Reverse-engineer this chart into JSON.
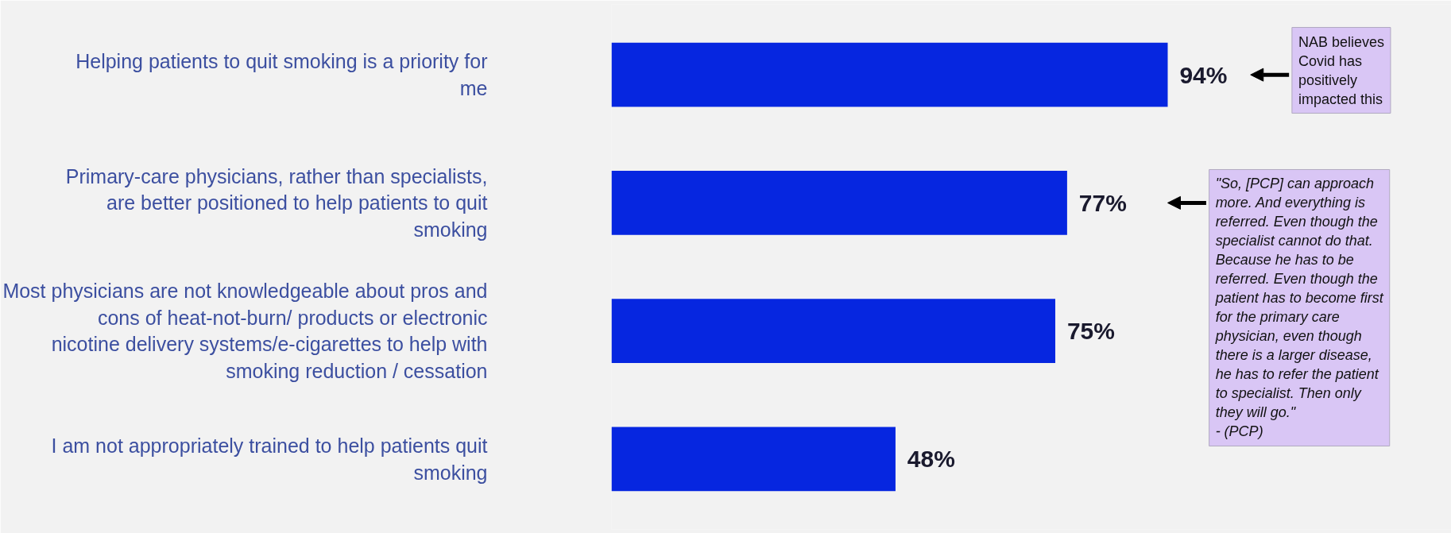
{
  "chart_data": {
    "type": "bar",
    "orientation": "horizontal",
    "data_labels": true,
    "categories": [
      "Helping patients to quit smoking is a priority for me",
      "Primary-care physicians, rather than specialists, are better positioned to help patients to quit smoking",
      "Most physicians are not knowledgeable about pros and cons of heat-not-burn/ products or electronic nicotine delivery systems/e-cigarettes to help with smoking reduction / cessation",
      "I am not appropriately trained to help patients quit smoking"
    ],
    "values": [
      94,
      77,
      75,
      48
    ],
    "color": "#0626e0",
    "value_labels": [
      "94%",
      "77%",
      "75%",
      "48%"
    ],
    "annotations": [
      "NAB believes Covid has positively impacted this",
      "\"So, [PCP] can approach more. And everything is referred. Even though the specialist cannot do that. Because he has to be referred. Even though the patient has to become first for the primary care physician, even though there is a larger disease, he has to refer the patient to specialist. Then only they will go.\"\n- (PCP)"
    ],
    "grid": false
  }
}
